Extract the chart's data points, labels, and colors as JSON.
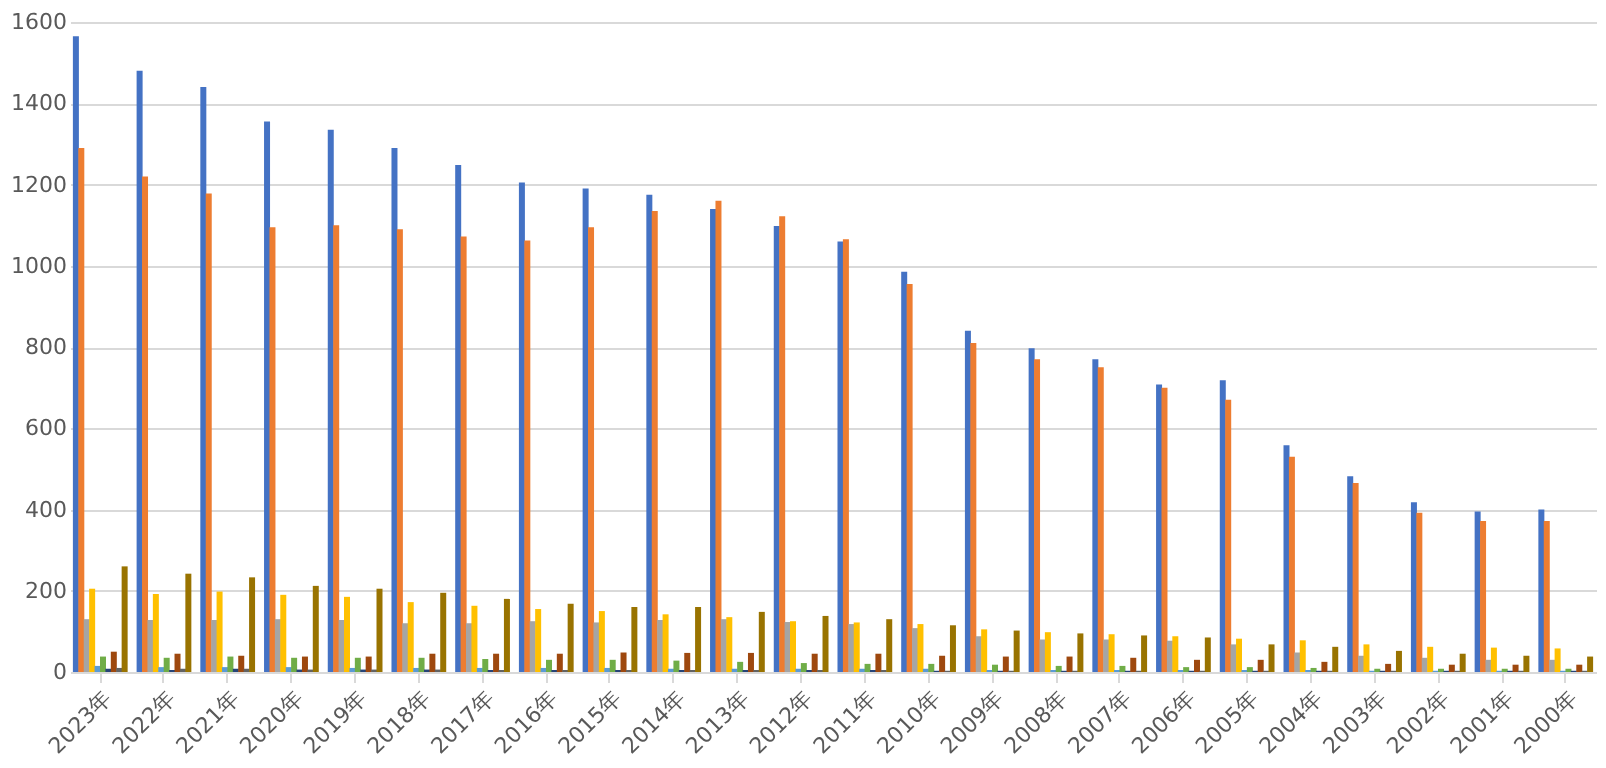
{
  "chart_data": {
    "type": "bar",
    "categories": [
      "2023年",
      "2022年",
      "2021年",
      "2020年",
      "2019年",
      "2018年",
      "2017年",
      "2016年",
      "2015年",
      "2014年",
      "2013年",
      "2012年",
      "2011年",
      "2010年",
      "2009年",
      "2008年",
      "2007年",
      "2006年",
      "2005年",
      "2004年",
      "2003年",
      "2002年",
      "2001年",
      "2000年"
    ],
    "series": [
      {
        "color": "#4472c4",
        "values": [
          1565,
          1480,
          1440,
          1355,
          1335,
          1290,
          1248,
          1205,
          1190,
          1175,
          1140,
          1098,
          1060,
          985,
          840,
          797,
          770,
          708,
          718,
          558,
          482,
          418,
          395,
          400
        ]
      },
      {
        "color": "#ed7d31",
        "values": [
          1290,
          1220,
          1178,
          1095,
          1100,
          1090,
          1072,
          1062,
          1095,
          1135,
          1160,
          1122,
          1065,
          955,
          810,
          770,
          750,
          700,
          670,
          530,
          465,
          392,
          372,
          372
        ]
      },
      {
        "color": "#a5a5a5",
        "values": [
          130,
          128,
          128,
          130,
          128,
          120,
          120,
          125,
          122,
          128,
          130,
          123,
          118,
          108,
          88,
          80,
          80,
          77,
          68,
          48,
          40,
          35,
          30,
          30
        ]
      },
      {
        "color": "#ffc000",
        "values": [
          205,
          192,
          198,
          190,
          185,
          172,
          163,
          155,
          150,
          142,
          135,
          125,
          122,
          118,
          105,
          98,
          93,
          88,
          82,
          78,
          68,
          62,
          60,
          58
        ]
      },
      {
        "color": "#5b9bd5",
        "values": [
          15,
          12,
          12,
          12,
          10,
          10,
          10,
          10,
          10,
          8,
          8,
          8,
          8,
          8,
          5,
          5,
          5,
          5,
          5,
          5,
          3,
          3,
          3,
          3
        ]
      },
      {
        "color": "#70ad47",
        "values": [
          38,
          35,
          38,
          35,
          35,
          35,
          32,
          30,
          30,
          28,
          25,
          22,
          20,
          20,
          18,
          15,
          15,
          12,
          12,
          10,
          8,
          8,
          8,
          8
        ]
      },
      {
        "color": "#264478",
        "values": [
          8,
          5,
          8,
          6,
          6,
          6,
          5,
          5,
          5,
          5,
          5,
          5,
          5,
          3,
          3,
          3,
          3,
          3,
          3,
          3,
          3,
          3,
          3,
          3
        ]
      },
      {
        "color": "#9e480e",
        "values": [
          50,
          45,
          40,
          38,
          38,
          45,
          45,
          45,
          48,
          47,
          47,
          45,
          45,
          40,
          38,
          38,
          35,
          30,
          30,
          25,
          20,
          18,
          18,
          18
        ]
      },
      {
        "color": "#636363",
        "values": [
          10,
          8,
          8,
          6,
          6,
          6,
          5,
          5,
          5,
          5,
          5,
          5,
          5,
          3,
          3,
          3,
          3,
          3,
          3,
          3,
          3,
          3,
          3,
          3
        ]
      },
      {
        "color": "#997300",
        "values": [
          260,
          242,
          233,
          212,
          205,
          195,
          180,
          168,
          160,
          160,
          148,
          138,
          130,
          115,
          102,
          95,
          90,
          85,
          68,
          62,
          52,
          45,
          40,
          38
        ]
      }
    ],
    "ylim": [
      0,
      1600
    ],
    "yticks": [
      0,
      200,
      400,
      600,
      800,
      1000,
      1200,
      1400,
      1600
    ],
    "grid": "y",
    "legend": false
  }
}
